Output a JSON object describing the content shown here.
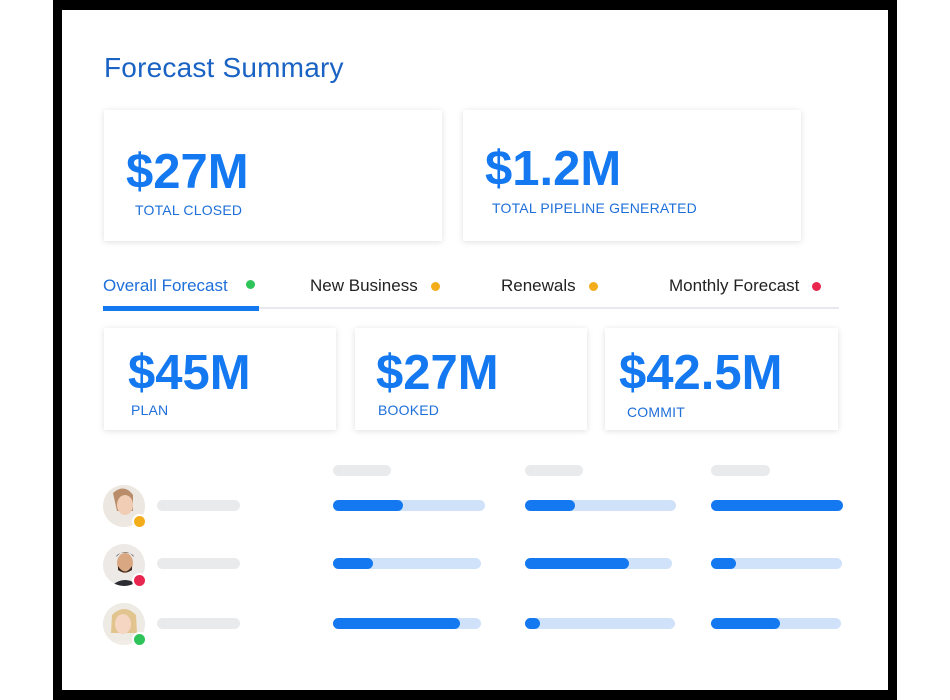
{
  "title": "Forecast Summary",
  "summary_cards": [
    {
      "value": "$27M",
      "label": "TOTAL CLOSED"
    },
    {
      "value": "$1.2M",
      "label": "TOTAL PIPELINE GENERATED"
    }
  ],
  "tabs": [
    {
      "label": "Overall Forecast",
      "status_color": "#2ec45a",
      "active": true
    },
    {
      "label": "New Business",
      "status_color": "#f4ad1a",
      "active": false
    },
    {
      "label": "Renewals",
      "status_color": "#f4ad1a",
      "active": false
    },
    {
      "label": "Monthly Forecast",
      "status_color": "#e8264e",
      "active": false
    }
  ],
  "metrics": [
    {
      "value": "$45M",
      "label": "PLAN"
    },
    {
      "value": "$27M",
      "label": "BOOKED"
    },
    {
      "value": "$42.5M",
      "label": "COMMIT"
    }
  ],
  "rows": [
    {
      "avatar": "woman-avatar-icon",
      "status_color": "#f4ad1a",
      "progress": [
        0.46,
        0.33,
        1.0
      ]
    },
    {
      "avatar": "man-avatar-icon",
      "status_color": "#e8264e",
      "progress": [
        0.27,
        0.71,
        0.19
      ]
    },
    {
      "avatar": "blonde-woman-avatar-icon",
      "status_color": "#2ec45a",
      "progress": [
        0.86,
        0.1,
        0.53
      ]
    }
  ],
  "colors": {
    "accent": "#1479f0",
    "title": "#1a63c4",
    "track": "#cfe2fa",
    "placeholder": "#e9eaec"
  }
}
